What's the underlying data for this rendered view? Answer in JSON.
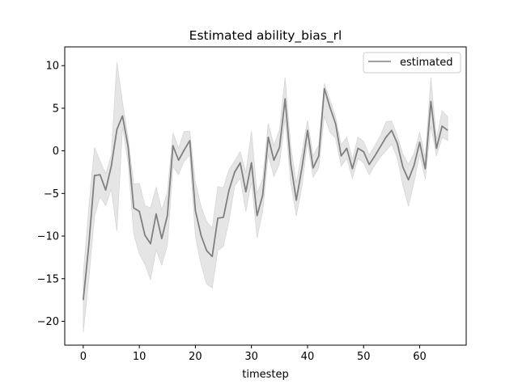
{
  "chart_data": {
    "type": "line",
    "title": "Estimated ability_bias_rl",
    "xlabel": "timestep",
    "ylabel": "",
    "xlim": [
      -3.3,
      68.3
    ],
    "ylim": [
      -22.8,
      12.2
    ],
    "xticks": [
      0,
      10,
      20,
      30,
      40,
      50,
      60
    ],
    "yticks": [
      -20,
      -15,
      -10,
      -5,
      0,
      5,
      10
    ],
    "grid": false,
    "legend_position": "top-right",
    "colors": {
      "line": "#808080",
      "band": "#e5e5e5",
      "band_edge": "#d6d6d6",
      "axes": "#000000"
    },
    "series": [
      {
        "name": "estimated",
        "x": [
          0,
          1,
          2,
          3,
          4,
          5,
          6,
          7,
          8,
          9,
          10,
          11,
          12,
          13,
          14,
          15,
          16,
          17,
          18,
          19,
          20,
          21,
          22,
          23,
          24,
          25,
          26,
          27,
          28,
          29,
          30,
          31,
          32,
          33,
          34,
          35,
          36,
          37,
          38,
          39,
          40,
          41,
          42,
          43,
          44,
          45,
          46,
          47,
          48,
          49,
          50,
          51,
          52,
          53,
          54,
          55,
          56,
          57,
          58,
          59,
          60,
          61,
          62,
          63,
          64,
          65
        ],
        "y": [
          -17.5,
          -11.0,
          -2.9,
          -2.8,
          -4.6,
          -1.8,
          2.5,
          4.1,
          0.5,
          -6.7,
          -7.1,
          -9.9,
          -10.9,
          -7.4,
          -10.3,
          -7.6,
          0.6,
          -1.1,
          0.1,
          1.2,
          -7.0,
          -9.9,
          -11.7,
          -12.4,
          -7.9,
          -7.8,
          -4.6,
          -2.5,
          -1.4,
          -4.8,
          -1.4,
          -7.6,
          -5.2,
          1.6,
          -1.1,
          0.4,
          6.1,
          -1.5,
          -5.8,
          -2.0,
          2.4,
          -2.0,
          -0.6,
          7.3,
          5.1,
          3.2,
          -0.6,
          0.3,
          -2.1,
          0.3,
          -0.1,
          -1.6,
          -0.6,
          0.5,
          1.6,
          2.4,
          0.9,
          -1.9,
          -3.4,
          -1.7,
          1.0,
          -2.1,
          5.8,
          0.3,
          2.9,
          2.4
        ],
        "lower": [
          -21.3,
          -15.0,
          -7.7,
          -5.4,
          -6.4,
          -4.5,
          -9.4,
          2.8,
          -1.4,
          -9.7,
          -12.1,
          -13.3,
          -15.1,
          -11.6,
          -13.4,
          -11.1,
          -1.8,
          -2.8,
          -1.2,
          -0.5,
          -10.0,
          -13.3,
          -15.6,
          -16.1,
          -11.7,
          -11.2,
          -8.2,
          -4.1,
          -3.2,
          -7.1,
          -3.6,
          -10.2,
          -7.1,
          -0.4,
          -3.0,
          -1.5,
          3.7,
          -3.7,
          -7.6,
          -4.2,
          1.0,
          -3.1,
          -2.0,
          4.1,
          2.2,
          1.5,
          -1.8,
          -0.9,
          -3.2,
          -0.9,
          -1.4,
          -2.8,
          -1.7,
          -0.7,
          0.0,
          0.8,
          -0.8,
          -4.0,
          -6.5,
          -3.7,
          -0.4,
          -3.3,
          2.9,
          -0.6,
          1.6,
          1.2
        ],
        "upper": [
          -14.5,
          -6.6,
          0.4,
          -1.2,
          -2.7,
          -0.5,
          10.4,
          5.7,
          1.5,
          -3.9,
          -3.8,
          -6.4,
          -6.7,
          -4.3,
          -6.9,
          -4.9,
          2.1,
          0.3,
          2.3,
          2.3,
          -3.7,
          -6.5,
          -8.3,
          -9.1,
          -4.2,
          -4.3,
          -2.2,
          -1.2,
          -0.1,
          -2.6,
          2.3,
          -5.0,
          -3.3,
          3.2,
          0.6,
          2.5,
          8.6,
          0.6,
          -3.8,
          -0.2,
          3.6,
          -0.6,
          0.7,
          7.9,
          6.0,
          4.0,
          0.7,
          1.6,
          -1.0,
          1.6,
          1.1,
          -0.5,
          0.6,
          1.8,
          3.4,
          3.5,
          1.8,
          -0.4,
          -1.6,
          -0.3,
          2.2,
          -0.8,
          8.6,
          1.4,
          4.7,
          4.0
        ]
      }
    ]
  }
}
